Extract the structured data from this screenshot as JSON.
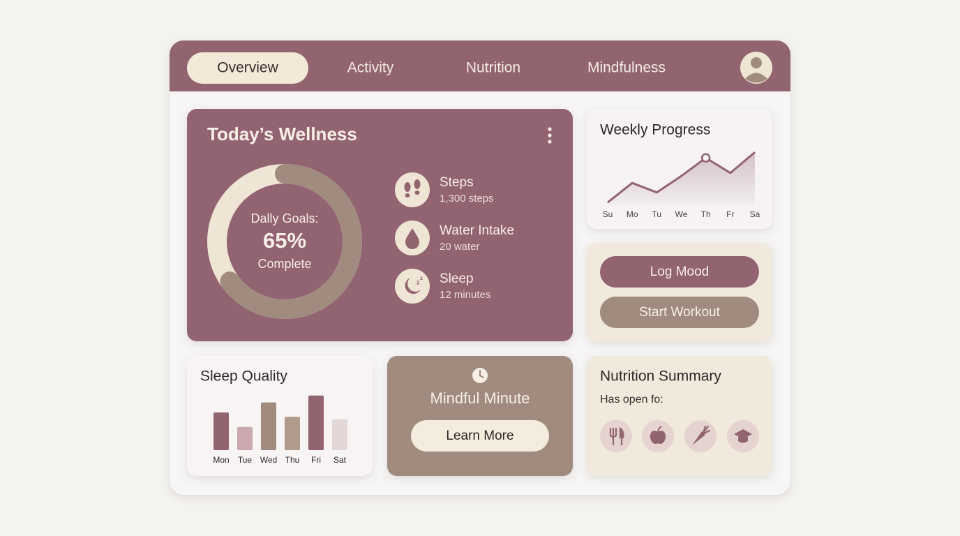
{
  "nav": {
    "tabs": [
      "Overview",
      "Activity",
      "Nutrition",
      "Mindfulness"
    ]
  },
  "wellness": {
    "title": "Today’s Wellness",
    "stats": [
      {
        "label": "Steps",
        "detail": "1,300 steps"
      },
      {
        "label": "Water Intake",
        "detail": "20 water"
      },
      {
        "label": "Sleep",
        "detail": "12 minutes"
      }
    ]
  },
  "actions": [
    "Log Mood",
    "Start Workout"
  ],
  "mindful": {
    "title": "Mindful Minute",
    "button": "Learn More"
  },
  "nutrition": {
    "title": "Nutrition Summary",
    "subtitle": "Has open fo:"
  },
  "chart_data": [
    {
      "type": "donut",
      "title": "Dally Goals:",
      "subtitle": "Complete",
      "values": [
        65
      ],
      "value_labels": [
        "65%"
      ],
      "range": [
        0,
        100
      ],
      "color": "#a08b7e",
      "track_color": "#efe5d4"
    },
    {
      "type": "line",
      "title": "Weekly Progress",
      "categories": [
        "Su",
        "Mo",
        "Tu",
        "We",
        "Th",
        "Fr",
        "Sa"
      ],
      "values": [
        11,
        42,
        27,
        53,
        82,
        58,
        91
      ],
      "ylim": [
        0,
        100
      ],
      "color": "#92646f",
      "highlight": 4
    },
    {
      "type": "bar",
      "title": "Sleep Quality",
      "categories": [
        "Mon",
        "Tue",
        "Wed",
        "Thu",
        "Fri",
        "Sat"
      ],
      "values": [
        60,
        37,
        76,
        53,
        87,
        49
      ],
      "ylim": [
        0,
        100
      ],
      "colors": [
        "#92646f",
        "#c9a9ae",
        "#a08b7e",
        "#b09a8c",
        "#92646f",
        "#e2d6d6"
      ]
    }
  ]
}
